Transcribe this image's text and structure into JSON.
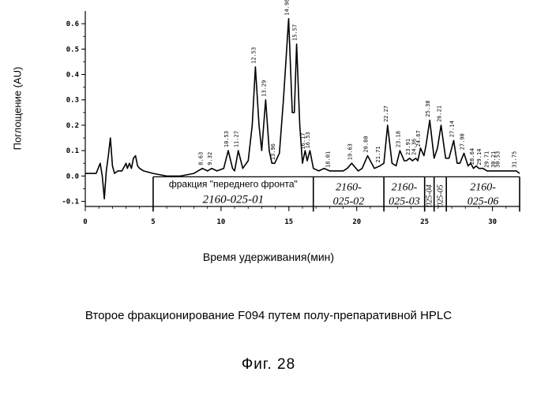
{
  "chart_data": {
    "type": "line",
    "ylabel": "Поглощение  (AU)",
    "xlabel": "Время удерживания(мин)",
    "xlim": [
      0,
      32
    ],
    "ylim": [
      -0.12,
      0.65
    ],
    "x_ticks": [
      "0",
      "5",
      "10",
      "15",
      "20",
      "25",
      "30"
    ],
    "x_tick_values": [
      0,
      5,
      10,
      15,
      20,
      25,
      30
    ],
    "y_ticks": [
      "-0.1",
      "0.0",
      "0.1",
      "0.2",
      "0.3",
      "0.4",
      "0.5",
      "0.6"
    ],
    "y_tick_values": [
      -0.1,
      0.0,
      0.1,
      0.2,
      0.3,
      0.4,
      0.5,
      0.6
    ],
    "series": [
      {
        "x": [
          0.0,
          0.8,
          1.1,
          1.25,
          1.4,
          1.55,
          1.7,
          1.85,
          2.0,
          2.15,
          2.4,
          2.7,
          3.0,
          3.1,
          3.25,
          3.4,
          3.55,
          3.7,
          3.85,
          4.0,
          4.3,
          5.0,
          6.0,
          7.0,
          8.0,
          8.63,
          9.0,
          9.32,
          9.7,
          10.2,
          10.53,
          10.85,
          11.0,
          11.27,
          11.6,
          12.0,
          12.3,
          12.53,
          12.8,
          13.0,
          13.29,
          13.55,
          13.75,
          13.96,
          14.3,
          14.6,
          14.98,
          15.25,
          15.4,
          15.57,
          15.8,
          16.0,
          16.2,
          16.35,
          16.55,
          16.8,
          17.2,
          17.6,
          18.0,
          18.4,
          19.0,
          19.3,
          19.63,
          20.1,
          20.4,
          20.8,
          21.3,
          21.71,
          22.0,
          22.27,
          22.6,
          22.9,
          23.18,
          23.5,
          23.65,
          23.9,
          24.1,
          24.35,
          24.5,
          24.7,
          24.95,
          25.1,
          25.38,
          25.7,
          25.95,
          26.21,
          26.55,
          26.8,
          27.14,
          27.4,
          27.6,
          27.9,
          28.2,
          28.4,
          28.6,
          28.8,
          29.0,
          29.3,
          29.6,
          30.0,
          30.4,
          30.7,
          31.0,
          31.3,
          31.75,
          32.0
        ],
        "y": [
          0.01,
          0.01,
          0.05,
          0.0,
          -0.09,
          0.02,
          0.08,
          0.15,
          0.04,
          0.01,
          0.02,
          0.02,
          0.05,
          0.03,
          0.05,
          0.03,
          0.07,
          0.08,
          0.04,
          0.03,
          0.02,
          0.01,
          0.0,
          0.0,
          0.01,
          0.03,
          0.02,
          0.03,
          0.02,
          0.03,
          0.1,
          0.03,
          0.02,
          0.1,
          0.03,
          0.06,
          0.2,
          0.43,
          0.2,
          0.1,
          0.3,
          0.1,
          0.05,
          0.05,
          0.09,
          0.3,
          0.62,
          0.25,
          0.25,
          0.52,
          0.2,
          0.05,
          0.1,
          0.06,
          0.1,
          0.03,
          0.02,
          0.03,
          0.02,
          0.02,
          0.02,
          0.03,
          0.05,
          0.02,
          0.03,
          0.08,
          0.03,
          0.04,
          0.05,
          0.2,
          0.05,
          0.04,
          0.1,
          0.06,
          0.06,
          0.07,
          0.06,
          0.07,
          0.06,
          0.11,
          0.08,
          0.12,
          0.22,
          0.07,
          0.11,
          0.2,
          0.07,
          0.07,
          0.14,
          0.05,
          0.05,
          0.09,
          0.04,
          0.05,
          0.03,
          0.04,
          0.03,
          0.03,
          0.02,
          0.02,
          0.02,
          0.02,
          0.02,
          0.02,
          0.02,
          0.01
        ]
      }
    ],
    "peak_labels": [
      {
        "x": 8.63,
        "label": "8.63"
      },
      {
        "x": 9.32,
        "label": "9.32"
      },
      {
        "x": 10.53,
        "label": "10.53"
      },
      {
        "x": 11.27,
        "label": "11.27"
      },
      {
        "x": 12.53,
        "label": "12.53"
      },
      {
        "x": 13.29,
        "label": "13.29"
      },
      {
        "x": 13.96,
        "label": "13.96"
      },
      {
        "x": 14.98,
        "label": "14.98"
      },
      {
        "x": 15.57,
        "label": "15.57"
      },
      {
        "x": 16.17,
        "label": "16.17"
      },
      {
        "x": 16.53,
        "label": "16.53"
      },
      {
        "x": 18.01,
        "label": "18.01"
      },
      {
        "x": 19.63,
        "label": "19.63"
      },
      {
        "x": 20.8,
        "label": "20.80"
      },
      {
        "x": 21.71,
        "label": "21.71"
      },
      {
        "x": 22.27,
        "label": "22.27"
      },
      {
        "x": 23.18,
        "label": "23.18"
      },
      {
        "x": 23.91,
        "label": "23.91"
      },
      {
        "x": 24.36,
        "label": "24.36"
      },
      {
        "x": 24.67,
        "label": "24.67"
      },
      {
        "x": 25.38,
        "label": "25.38"
      },
      {
        "x": 26.21,
        "label": "26.21"
      },
      {
        "x": 27.14,
        "label": "27.14"
      },
      {
        "x": 27.9,
        "label": "27.90"
      },
      {
        "x": 28.64,
        "label": "28.64"
      },
      {
        "x": 29.14,
        "label": "29.14"
      },
      {
        "x": 29.71,
        "label": "29.71"
      },
      {
        "x": 30.21,
        "label": "30.21"
      },
      {
        "x": 30.53,
        "label": "30.53"
      },
      {
        "x": 31.75,
        "label": "31.75"
      }
    ],
    "fractions": [
      {
        "start": 5,
        "end": 16.8,
        "label": "фракция \"переднего фронта\"",
        "code": "2160-025-01"
      },
      {
        "start": 16.8,
        "end": 22.0,
        "label": "",
        "code": "2160-025-02"
      },
      {
        "start": 22.0,
        "end": 25.0,
        "label": "",
        "code": "2160-025-03"
      },
      {
        "start": 25.0,
        "end": 25.7,
        "label": "",
        "code": "025-04"
      },
      {
        "start": 25.7,
        "end": 26.6,
        "label": "",
        "code": "025-05"
      },
      {
        "start": 26.6,
        "end": 32.0,
        "label": "",
        "code": "2160-025-06"
      }
    ]
  },
  "caption": "Второе фракционирование F094 путем полу-препаративной HPLC",
  "figure_label": "Фиг. 28"
}
